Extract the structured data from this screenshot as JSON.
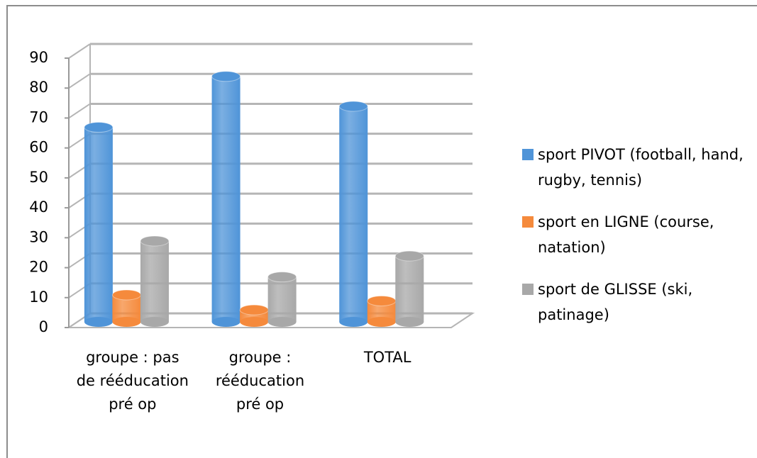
{
  "chart_data": {
    "type": "bar3d",
    "categories": [
      "groupe : pas de rééducation pré op",
      "groupe : rééducation pré op",
      "TOTAL"
    ],
    "series": [
      {
        "name": "sport PIVOT (football, hand, rugby, tennis)",
        "color": "#4f94d8",
        "values": [
          65,
          82,
          72
        ]
      },
      {
        "name": "sport en LIGNE (course, natation)",
        "color": "#f58a3c",
        "values": [
          9,
          4,
          7
        ]
      },
      {
        "name": "sport de GLISSE (ski, patinage)",
        "color": "#a8a8a8",
        "values": [
          27,
          15,
          22
        ]
      }
    ],
    "ylim": [
      0,
      90
    ],
    "yticks": [
      0,
      10,
      20,
      30,
      40,
      50,
      60,
      70,
      80,
      90
    ],
    "grid": true,
    "legend": "right"
  }
}
